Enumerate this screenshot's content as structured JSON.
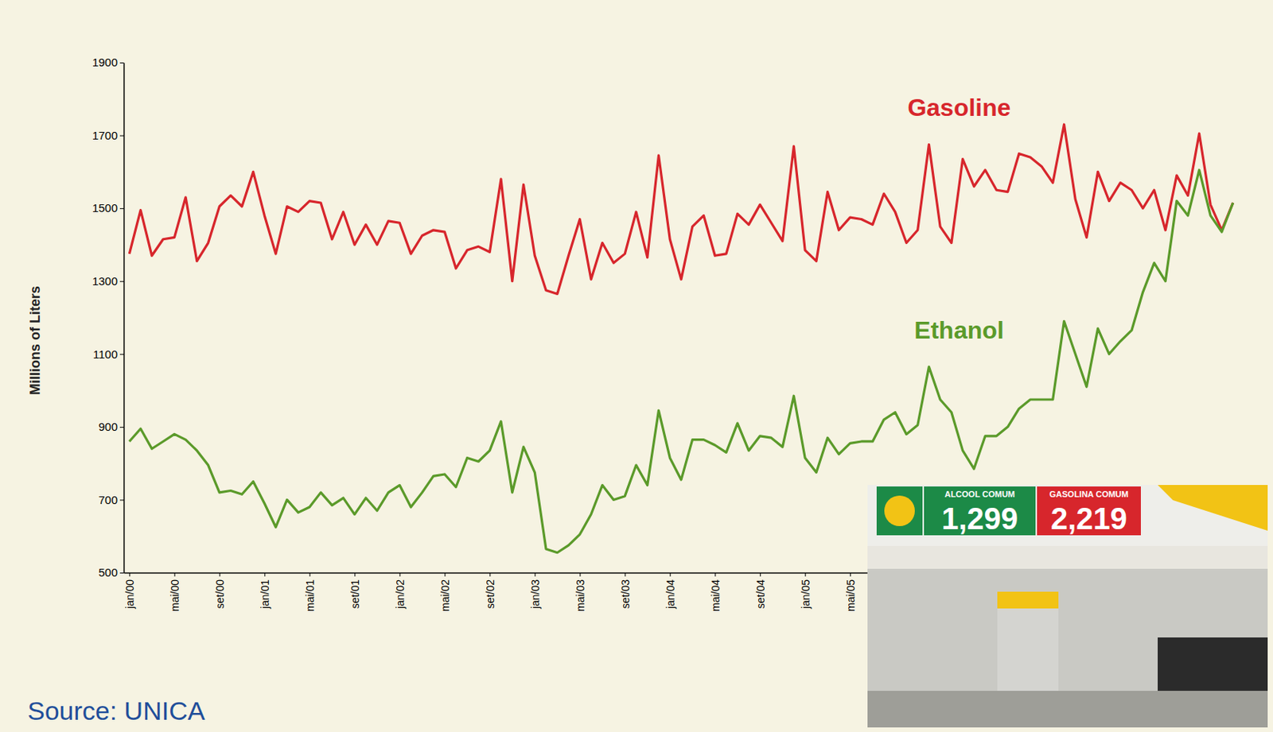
{
  "chart_data": {
    "type": "line",
    "y_label": "Millions of Liters",
    "source": "Source: UNICA",
    "annotations": [
      "ALCOOL COMUM",
      "1,299",
      "GASOLINA COMUM",
      "2,219"
    ],
    "categories": [
      "jan/00",
      null,
      null,
      null,
      "mai/00",
      null,
      null,
      null,
      "set/00",
      null,
      null,
      null,
      "jan/01",
      null,
      null,
      null,
      "mai/01",
      null,
      null,
      null,
      "set/01",
      null,
      null,
      null,
      "jan/02",
      null,
      null,
      null,
      "mai/02",
      null,
      null,
      null,
      "set/02",
      null,
      null,
      null,
      "jan/03",
      null,
      null,
      null,
      "mai/03",
      null,
      null,
      null,
      "set/03",
      null,
      null,
      null,
      "jan/04",
      null,
      null,
      null,
      "mai/04",
      null,
      null,
      null,
      "set/04",
      null,
      null,
      null,
      "jan/05",
      null,
      null,
      null,
      "mai/05",
      null,
      null,
      null,
      null,
      null,
      null,
      null,
      null,
      null,
      null,
      null,
      null,
      null,
      null,
      null,
      null,
      null,
      null,
      null,
      null,
      null,
      null,
      null,
      null,
      null,
      null,
      null,
      null,
      null,
      null,
      null,
      null,
      null,
      null
    ],
    "series": [
      {
        "name": "Gasoline",
        "color": "#d7262c",
        "values": [
          1375,
          1495,
          1370,
          1415,
          1420,
          1530,
          1355,
          1405,
          1505,
          1535,
          1505,
          1600,
          1480,
          1375,
          1505,
          1490,
          1520,
          1515,
          1415,
          1490,
          1400,
          1455,
          1400,
          1465,
          1460,
          1375,
          1425,
          1440,
          1435,
          1335,
          1385,
          1395,
          1380,
          1580,
          1300,
          1565,
          1370,
          1275,
          1265,
          1370,
          1470,
          1305,
          1405,
          1350,
          1375,
          1490,
          1365,
          1645,
          1415,
          1305,
          1450,
          1480,
          1370,
          1375,
          1485,
          1455,
          1510,
          1460,
          1410,
          1670,
          1385,
          1355,
          1545,
          1440,
          1475,
          1470,
          1455,
          1540,
          1490,
          1405,
          1440,
          1675,
          1450,
          1405,
          1635,
          1560,
          1605,
          1550,
          1545,
          1650,
          1640,
          1615,
          1570,
          1730,
          1525,
          1420,
          1600,
          1520,
          1570,
          1550,
          1500,
          1550,
          1440,
          1590,
          1535,
          1705,
          1510,
          1440,
          1515
        ]
      },
      {
        "name": "Ethanol",
        "color": "#5b9a2a",
        "values": [
          860,
          895,
          840,
          860,
          880,
          865,
          835,
          795,
          720,
          725,
          715,
          750,
          690,
          625,
          700,
          665,
          680,
          720,
          685,
          705,
          660,
          705,
          670,
          720,
          740,
          680,
          720,
          765,
          770,
          735,
          815,
          805,
          835,
          915,
          720,
          845,
          775,
          565,
          555,
          575,
          605,
          660,
          740,
          700,
          710,
          795,
          740,
          945,
          815,
          755,
          865,
          865,
          850,
          830,
          910,
          835,
          875,
          870,
          845,
          985,
          815,
          775,
          870,
          825,
          855,
          860,
          860,
          920,
          940,
          880,
          905,
          1065,
          975,
          940,
          835,
          785,
          875,
          875,
          900,
          950,
          975,
          975,
          975,
          1190,
          1100,
          1010,
          1170,
          1100,
          1135,
          1165,
          1270,
          1350,
          1300,
          1520,
          1480,
          1605,
          1480,
          1435,
          1515
        ]
      }
    ],
    "ylim": [
      500,
      1900
    ],
    "yticks": [
      500,
      700,
      900,
      1100,
      1300,
      1500,
      1700,
      1900
    ],
    "grid": false
  }
}
